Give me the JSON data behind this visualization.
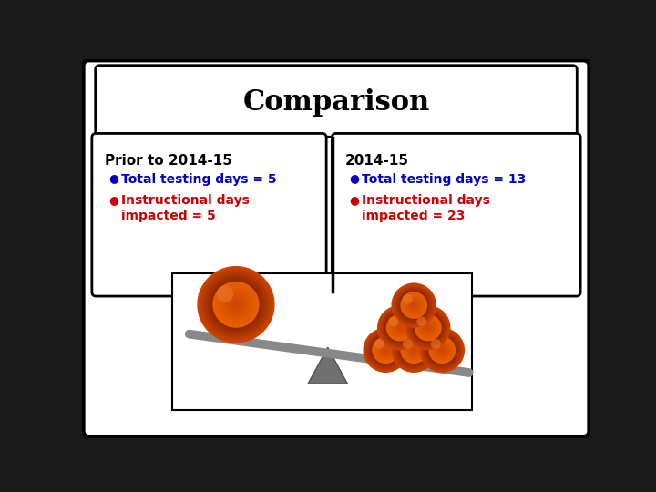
{
  "title": "Comparison",
  "title_fontsize": 22,
  "title_fontweight": "bold",
  "bg_color": "#ffffff",
  "outer_bg": "#1a1a1a",
  "left_header": "Prior to 2014-15",
  "right_header": "2014-15",
  "left_bullet1_color": "#0000cc",
  "left_bullet2_color": "#cc0000",
  "right_bullet1_color": "#0000cc",
  "right_bullet2_color": "#cc0000",
  "left_bullet1": "Total testing days = 5",
  "left_bullet2_line1": "Instructional days",
  "left_bullet2_line2": "impacted = 5",
  "right_bullet1": "Total testing days = 13",
  "right_bullet2_line1": "Instructional days",
  "right_bullet2_line2": "impacted = 23",
  "header_fontsize": 11,
  "bullet_fontsize": 10,
  "header_color": "#000000",
  "box_edgecolor": "#000000",
  "ball_base_color": "#8B2500",
  "ball_mid_color": "#CC4400",
  "ball_highlight_color": "#E06020",
  "beam_color": "#888888",
  "pivot_color": "#707070"
}
